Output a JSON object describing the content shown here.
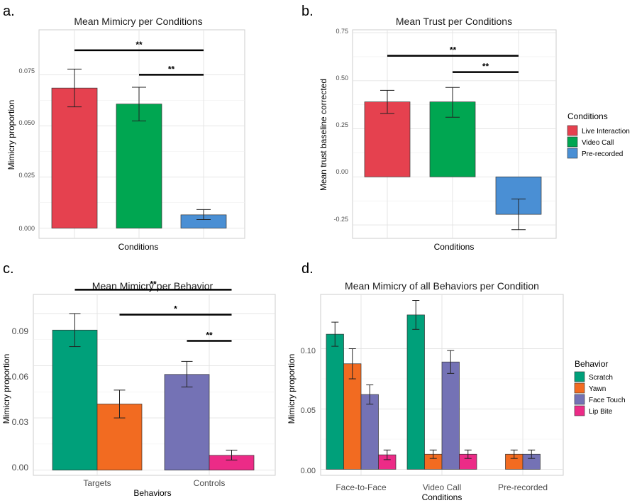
{
  "panels": {
    "a": "a.",
    "b": "b.",
    "c": "c.",
    "d": "d."
  },
  "colors": {
    "live": "#e5414f",
    "video": "#00a651",
    "pre": "#4a8fd4",
    "scratch": "#00a07a",
    "yawn": "#f26b21",
    "face_touch": "#7472b5",
    "lip_bite": "#ec2b87",
    "grid": "#e3e3e3",
    "panel_border": "#cccccc"
  },
  "chart_data": [
    {
      "id": "a",
      "type": "bar",
      "title": "Mean Mimicry per Conditions",
      "xlabel": "Conditions",
      "ylabel": "Mimicry proportion",
      "ylim": [
        0,
        0.085
      ],
      "yticks": [
        "0.000",
        "0.025",
        "0.050",
        "0.075"
      ],
      "ytick_values": [
        0,
        0.025,
        0.05,
        0.075
      ],
      "grid": true,
      "bars": [
        {
          "category": "Live Interaction",
          "value": 0.0685,
          "err_low": 0.0593,
          "err_high": 0.0778,
          "color": "#e5414f"
        },
        {
          "category": "Video Call",
          "value": 0.0607,
          "err_low": 0.0524,
          "err_high": 0.0689,
          "color": "#00a651"
        },
        {
          "category": "Pre-recorded",
          "value": 0.0065,
          "err_low": 0.0042,
          "err_high": 0.0091,
          "color": "#4a8fd4"
        }
      ],
      "significance": [
        {
          "from": 0,
          "to": 2,
          "label": "**",
          "y": 0.087
        },
        {
          "from": 1,
          "to": 2,
          "label": "**",
          "y": 0.075
        }
      ]
    },
    {
      "id": "b",
      "type": "bar",
      "title": "Mean Trust per Conditions",
      "xlabel": "Conditions",
      "ylabel": "Mean trust baseline corrected",
      "ylim": [
        -0.3,
        0.75
      ],
      "yticks": [
        "-0.25",
        "0.00",
        "0.25",
        "0.50",
        "0.75"
      ],
      "ytick_values": [
        -0.25,
        0,
        0.25,
        0.5,
        0.75
      ],
      "grid": true,
      "legend": {
        "title": "Conditions",
        "position": "right",
        "items": [
          {
            "label": "Live Interaction",
            "color": "#e5414f"
          },
          {
            "label": "Video Call",
            "color": "#00a651"
          },
          {
            "label": "Pre-recorded",
            "color": "#4a8fd4"
          }
        ]
      },
      "bars": [
        {
          "category": "Live Interaction",
          "value": 0.39,
          "err_low": 0.33,
          "err_high": 0.45,
          "color": "#e5414f"
        },
        {
          "category": "Video Call",
          "value": 0.39,
          "err_low": 0.31,
          "err_high": 0.465,
          "color": "#00a651"
        },
        {
          "category": "Pre-recorded",
          "value": -0.195,
          "err_low": -0.275,
          "err_high": -0.115,
          "color": "#4a8fd4"
        }
      ],
      "significance": [
        {
          "from": 0,
          "to": 2,
          "label": "**",
          "y": 0.63
        },
        {
          "from": 1,
          "to": 2,
          "label": "**",
          "y": 0.545
        }
      ]
    },
    {
      "id": "c",
      "type": "bar",
      "title": "Mean Mimicry per Behavior",
      "xlabel": "Behaviors",
      "ylabel": "Mimicry proportion",
      "ylim": [
        -0.003,
        0.101
      ],
      "yticks": [
        "0.00",
        "0.03",
        "0.06",
        "0.09"
      ],
      "ytick_values": [
        0,
        0.03,
        0.06,
        0.09
      ],
      "categories": [
        "Targets",
        "Controls"
      ],
      "grid": true,
      "bars": [
        {
          "group": 0,
          "slot": 0,
          "behavior": "Scratch",
          "value": 0.0805,
          "err_low": 0.071,
          "err_high": 0.09,
          "color": "#00a07a"
        },
        {
          "group": 0,
          "slot": 1,
          "behavior": "Yawn",
          "value": 0.038,
          "err_low": 0.03,
          "err_high": 0.046,
          "color": "#f26b21"
        },
        {
          "group": 1,
          "slot": 0,
          "behavior": "Face Touch",
          "value": 0.055,
          "err_low": 0.0478,
          "err_high": 0.0625,
          "color": "#7472b5"
        },
        {
          "group": 1,
          "slot": 1,
          "behavior": "Lip Bite",
          "value": 0.0085,
          "err_low": 0.0058,
          "err_high": 0.0115,
          "color": "#ec2b87"
        }
      ],
      "significance": [
        {
          "from": [
            0,
            0
          ],
          "to": [
            1,
            1
          ],
          "label": "**",
          "y": 0.1037
        },
        {
          "from": [
            0,
            1
          ],
          "to": [
            1,
            1
          ],
          "label": "*",
          "y": 0.0894
        },
        {
          "from": [
            1,
            0
          ],
          "to": [
            1,
            1
          ],
          "label": "**",
          "y": 0.0743
        }
      ]
    },
    {
      "id": "d",
      "type": "bar",
      "title": "Mean Mimicry of all Behaviors per Condition",
      "xlabel": "Conditions",
      "ylabel": "Mimicry proportion",
      "ylim": [
        -0.005,
        0.145
      ],
      "yticks": [
        "0.00",
        "0.05",
        "0.10"
      ],
      "ytick_values": [
        0,
        0.05,
        0.1
      ],
      "categories": [
        "Face-to-Face",
        "Video Call",
        "Pre-recorded"
      ],
      "grid": true,
      "legend": {
        "title": "Behavior",
        "position": "right",
        "items": [
          {
            "label": "Scratch",
            "color": "#00a07a"
          },
          {
            "label": "Yawn",
            "color": "#f26b21"
          },
          {
            "label": "Face Touch",
            "color": "#7472b5"
          },
          {
            "label": "Lip Bite",
            "color": "#ec2b87"
          }
        ]
      },
      "series": [
        {
          "name": "Scratch",
          "color": "#00a07a",
          "values": [
            0.112,
            0.128,
            0
          ],
          "err": [
            0.01,
            0.012,
            0
          ]
        },
        {
          "name": "Yawn",
          "color": "#f26b21",
          "values": [
            0.0875,
            0.0125,
            0.0125
          ],
          "err": [
            0.0125,
            0.0035,
            0.0035
          ]
        },
        {
          "name": "Face Touch",
          "color": "#7472b5",
          "values": [
            0.062,
            0.089,
            0.0125
          ],
          "err": [
            0.008,
            0.0095,
            0.0035
          ]
        },
        {
          "name": "Lip Bite",
          "color": "#ec2b87",
          "values": [
            0.012,
            0.0125,
            0
          ],
          "err": [
            0.004,
            0.0035,
            0
          ]
        }
      ]
    }
  ]
}
